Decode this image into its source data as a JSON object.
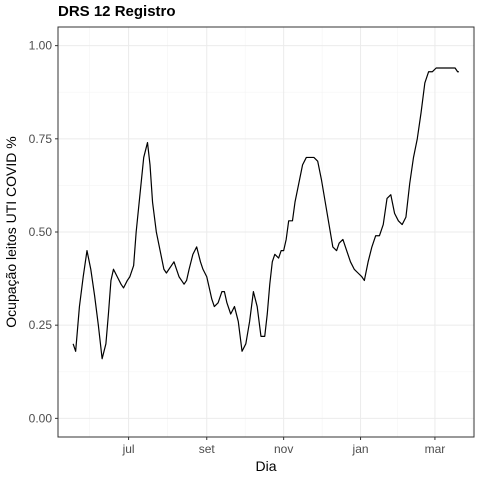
{
  "chart_data": {
    "type": "line",
    "title": "DRS 12 Registro",
    "xlabel": "Dia",
    "ylabel": "Ocupação leitos UTI COVID %",
    "x_range": [
      "2020-05-06",
      "2021-04-01"
    ],
    "ylim": [
      -0.05,
      1.05
    ],
    "x_ticks": [
      {
        "label": "jul",
        "value": "2020-07-01"
      },
      {
        "label": "set",
        "value": "2020-09-01"
      },
      {
        "label": "nov",
        "value": "2020-11-01"
      },
      {
        "label": "jan",
        "value": "2021-01-01"
      },
      {
        "label": "mar",
        "value": "2021-03-01"
      }
    ],
    "y_ticks": [
      {
        "label": "0.00",
        "value": 0.0
      },
      {
        "label": "0.25",
        "value": 0.25
      },
      {
        "label": "0.50",
        "value": 0.5
      },
      {
        "label": "0.75",
        "value": 0.75
      },
      {
        "label": "1.00",
        "value": 1.0
      }
    ],
    "grid": true,
    "series": [
      {
        "x": [
          "2020-05-18",
          "2020-05-20",
          "2020-05-23",
          "2020-05-26",
          "2020-05-29",
          "2020-06-01",
          "2020-06-04",
          "2020-06-07",
          "2020-06-10",
          "2020-06-13",
          "2020-06-15",
          "2020-06-17",
          "2020-06-19",
          "2020-06-22",
          "2020-06-25",
          "2020-06-27",
          "2020-06-30",
          "2020-07-02",
          "2020-07-05",
          "2020-07-07",
          "2020-07-10",
          "2020-07-13",
          "2020-07-16",
          "2020-07-18",
          "2020-07-20",
          "2020-07-23",
          "2020-07-26",
          "2020-07-29",
          "2020-07-31",
          "2020-08-02",
          "2020-08-04",
          "2020-08-06",
          "2020-08-08",
          "2020-08-10",
          "2020-08-12",
          "2020-08-14",
          "2020-08-16",
          "2020-08-18",
          "2020-08-21",
          "2020-08-24",
          "2020-08-27",
          "2020-08-29",
          "2020-09-01",
          "2020-09-03",
          "2020-09-05",
          "2020-09-07",
          "2020-09-10",
          "2020-09-13",
          "2020-09-15",
          "2020-09-17",
          "2020-09-20",
          "2020-09-23",
          "2020-09-26",
          "2020-09-29",
          "2020-10-02",
          "2020-10-05",
          "2020-10-08",
          "2020-10-11",
          "2020-10-14",
          "2020-10-17",
          "2020-10-19",
          "2020-10-21",
          "2020-10-23",
          "2020-10-25",
          "2020-10-28",
          "2020-10-30",
          "2020-11-01",
          "2020-11-03",
          "2020-11-05",
          "2020-11-08",
          "2020-11-10",
          "2020-11-13",
          "2020-11-16",
          "2020-11-19",
          "2020-11-22",
          "2020-11-25",
          "2020-11-28",
          "2020-12-01",
          "2020-12-04",
          "2020-12-07",
          "2020-12-10",
          "2020-12-13",
          "2020-12-15",
          "2020-12-18",
          "2020-12-21",
          "2020-12-24",
          "2020-12-27",
          "2020-12-30",
          "2021-01-02",
          "2021-01-04",
          "2021-01-07",
          "2021-01-10",
          "2021-01-13",
          "2021-01-16",
          "2021-01-19",
          "2021-01-22",
          "2021-01-25",
          "2021-01-28",
          "2021-01-31",
          "2021-02-03",
          "2021-02-06",
          "2021-02-09",
          "2021-02-12",
          "2021-02-15",
          "2021-02-18",
          "2021-02-21",
          "2021-02-24",
          "2021-02-27",
          "2021-03-02",
          "2021-03-05",
          "2021-03-08",
          "2021-03-11",
          "2021-03-14",
          "2021-03-17",
          "2021-03-19",
          "2021-03-20"
        ],
        "y": [
          0.2,
          0.18,
          0.3,
          0.38,
          0.45,
          0.4,
          0.33,
          0.25,
          0.16,
          0.2,
          0.28,
          0.37,
          0.4,
          0.38,
          0.36,
          0.35,
          0.37,
          0.38,
          0.41,
          0.5,
          0.6,
          0.7,
          0.74,
          0.68,
          0.58,
          0.5,
          0.45,
          0.4,
          0.39,
          0.4,
          0.41,
          0.42,
          0.4,
          0.38,
          0.37,
          0.36,
          0.37,
          0.4,
          0.44,
          0.46,
          0.42,
          0.4,
          0.38,
          0.35,
          0.32,
          0.3,
          0.31,
          0.34,
          0.34,
          0.31,
          0.28,
          0.3,
          0.26,
          0.18,
          0.2,
          0.26,
          0.34,
          0.3,
          0.22,
          0.22,
          0.28,
          0.36,
          0.42,
          0.44,
          0.43,
          0.45,
          0.45,
          0.48,
          0.53,
          0.53,
          0.58,
          0.63,
          0.68,
          0.7,
          0.7,
          0.7,
          0.69,
          0.64,
          0.58,
          0.52,
          0.46,
          0.45,
          0.47,
          0.48,
          0.45,
          0.42,
          0.4,
          0.39,
          0.38,
          0.37,
          0.42,
          0.46,
          0.49,
          0.49,
          0.52,
          0.59,
          0.6,
          0.55,
          0.53,
          0.52,
          0.54,
          0.63,
          0.7,
          0.75,
          0.82,
          0.9,
          0.93,
          0.93,
          0.94,
          0.94,
          0.94,
          0.94,
          0.94,
          0.94,
          0.93,
          0.93
        ]
      }
    ]
  }
}
